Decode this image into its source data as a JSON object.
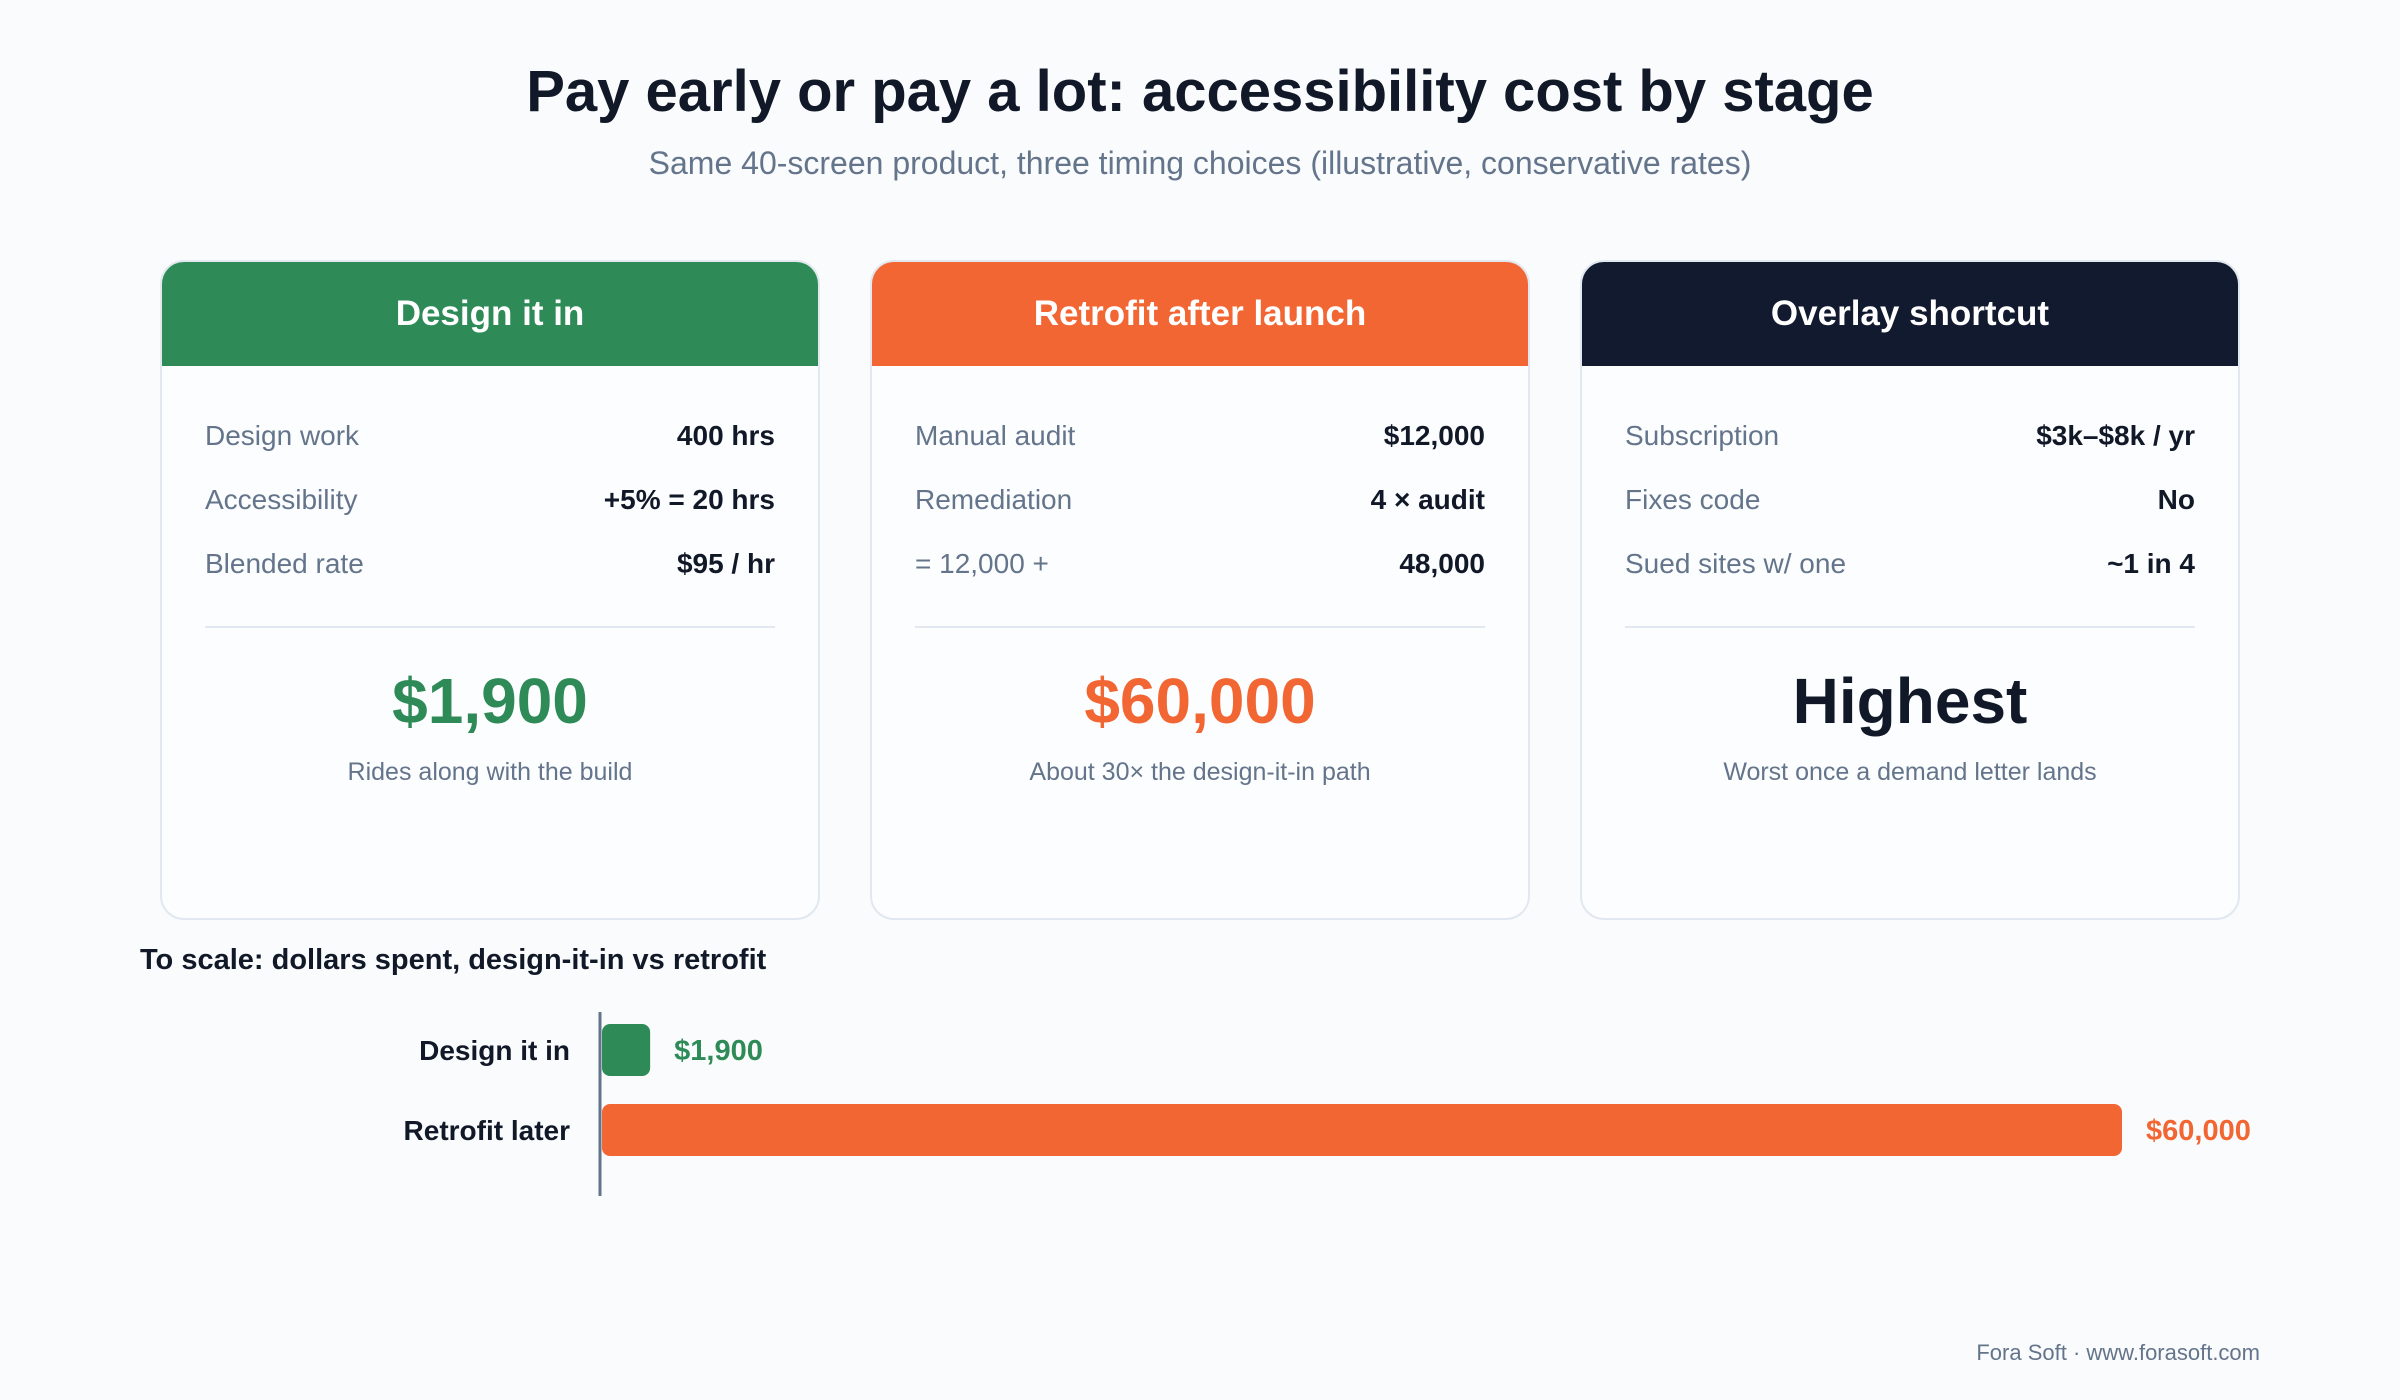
{
  "title": "Pay early or pay a lot: accessibility cost by stage",
  "subtitle": "Same 40-screen product, three timing choices (illustrative, conservative rates)",
  "colors": {
    "green": "#2e8b57",
    "orange": "#f26633",
    "navy": "#111a2e",
    "text": "#111827",
    "muted": "#64748b"
  },
  "cards": [
    {
      "header": "Design it in",
      "rows": [
        {
          "label": "Design work",
          "value": "400 hrs"
        },
        {
          "label": "Accessibility",
          "value": "+5% = 20 hrs"
        },
        {
          "label": "Blended rate",
          "value": "$95 / hr"
        }
      ],
      "big": "$1,900",
      "note": "Rides along with the build"
    },
    {
      "header": "Retrofit after launch",
      "rows": [
        {
          "label": "Manual audit",
          "value": "$12,000"
        },
        {
          "label": "Remediation",
          "value": "4 × audit"
        },
        {
          "label": "= 12,000 +",
          "value": "48,000"
        }
      ],
      "big": "$60,000",
      "note": "About 30× the design-it-in path"
    },
    {
      "header": "Overlay shortcut",
      "rows": [
        {
          "label": "Subscription",
          "value": "$3k–$8k / yr"
        },
        {
          "label": "Fixes code",
          "value": "No"
        },
        {
          "label": "Sued sites w/ one",
          "value": "~1 in 4"
        }
      ],
      "big": "Highest",
      "note": "Worst once a demand letter lands"
    }
  ],
  "scale_title": "To scale: dollars spent, design-it-in vs retrofit",
  "chart_data": {
    "type": "bar",
    "orientation": "horizontal",
    "title": "To scale: dollars spent, design-it-in vs retrofit",
    "categories": [
      "Design it in",
      "Retrofit later"
    ],
    "values": [
      1900,
      60000
    ],
    "value_labels": [
      "$1,900",
      "$60,000"
    ],
    "colors": [
      "#2e8b57",
      "#f26633"
    ],
    "xlim": [
      0,
      60000
    ],
    "grid": false,
    "legend": "none"
  },
  "footer": "Fora Soft · www.forasoft.com"
}
